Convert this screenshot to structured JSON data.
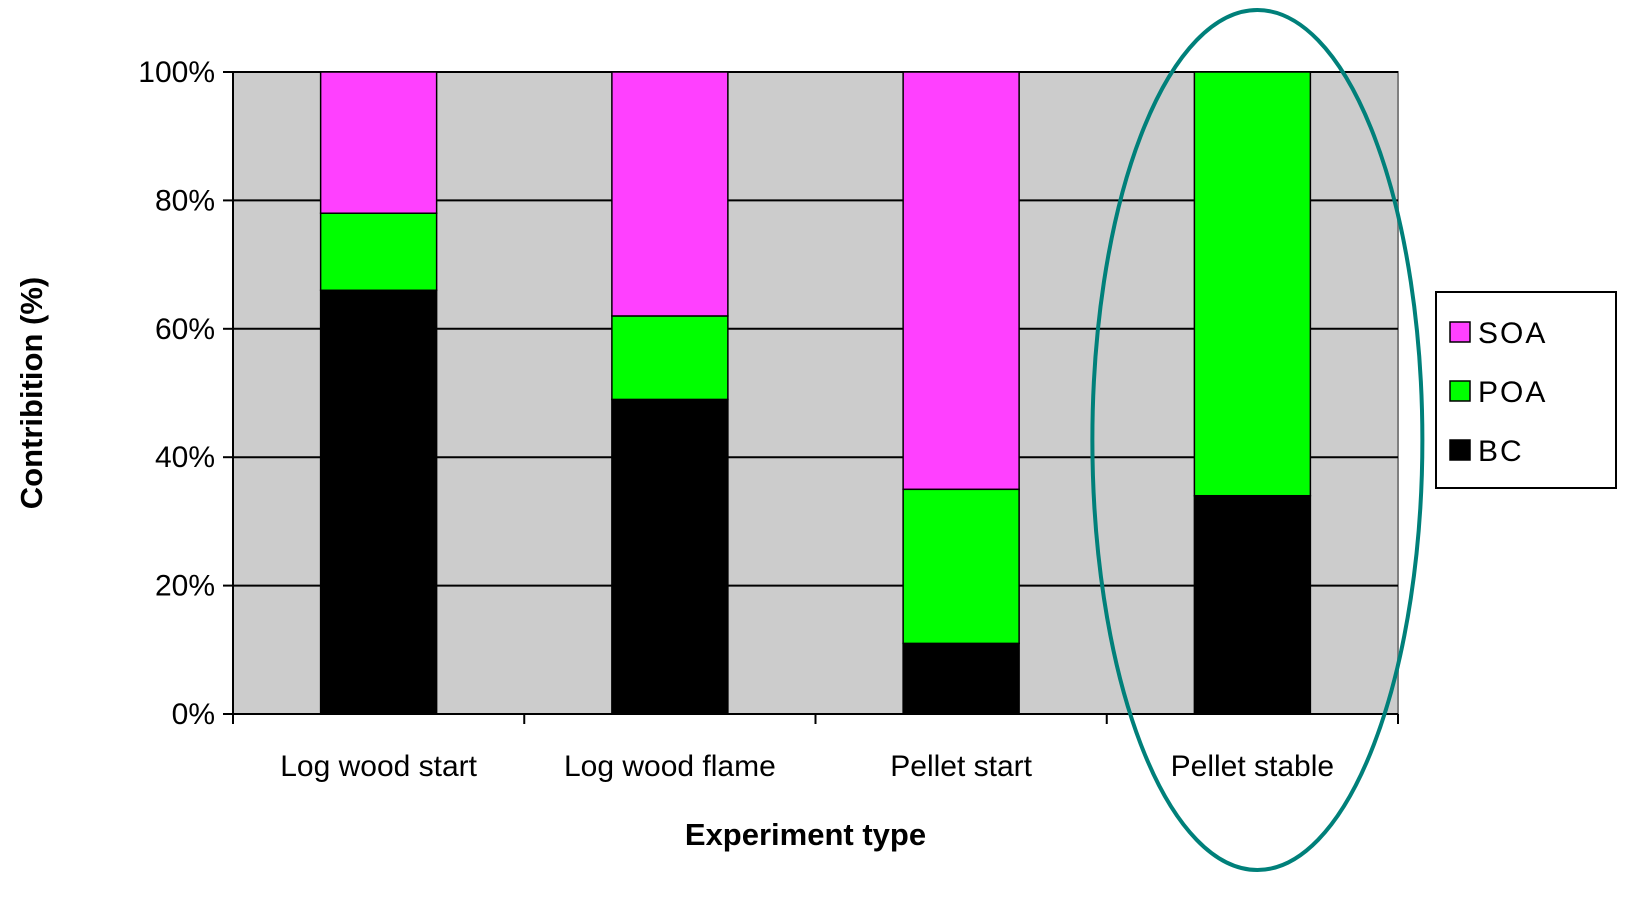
{
  "chart_data": {
    "type": "bar",
    "stacked": true,
    "categories": [
      "Log wood start",
      "Log wood flame",
      "Pellet start",
      "Pellet stable"
    ],
    "series": [
      {
        "name": "BC",
        "values": [
          66,
          49,
          11,
          34
        ],
        "color": "#000000"
      },
      {
        "name": "POA",
        "values": [
          12,
          13,
          24,
          66
        ],
        "color": "#00ff00"
      },
      {
        "name": "SOA",
        "values": [
          22,
          38,
          65,
          0
        ],
        "color": "#ff40ff"
      }
    ],
    "xlabel": "Experiment type",
    "ylabel": "Contribition (%)",
    "ylim": [
      0,
      100
    ],
    "y_ticks": [
      "0%",
      "20%",
      "40%",
      "60%",
      "80%",
      "100%"
    ],
    "y_tick_values": [
      0,
      20,
      40,
      60,
      80,
      100
    ],
    "grid": true,
    "legend": {
      "placement": "right",
      "entries": [
        "SOA",
        "POA",
        "BC"
      ]
    },
    "plot_background": "#cccccc",
    "highlight": {
      "category": "Pellet stable",
      "shape": "ellipse",
      "color": "#00807a"
    }
  }
}
